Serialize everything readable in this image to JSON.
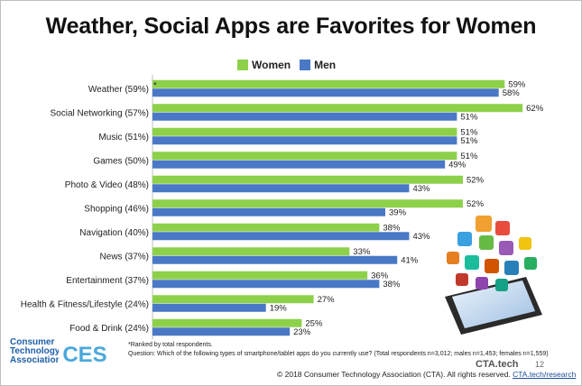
{
  "title": "Weather, Social Apps are Favorites for Women",
  "legend": {
    "women": "Women",
    "men": "Men"
  },
  "colors": {
    "women": "#8dd14b",
    "men": "#4a78c5"
  },
  "chart_data": {
    "type": "bar",
    "orientation": "horizontal",
    "categories": [
      "Weather (59%)",
      "Social Networking (57%)",
      "Music (51%)",
      "Games (50%)",
      "Photo & Video (48%)",
      "Shopping (46%)",
      "Navigation (40%)",
      "News (37%)",
      "Entertainment (37%)",
      "Health & Fitness/Lifestyle (24%)",
      "Food & Drink (24%)"
    ],
    "series": [
      {
        "name": "Women",
        "values": [
          59,
          62,
          51,
          51,
          52,
          52,
          38,
          33,
          36,
          27,
          25
        ]
      },
      {
        "name": "Men",
        "values": [
          58,
          51,
          51,
          49,
          43,
          39,
          43,
          41,
          38,
          19,
          23
        ]
      }
    ],
    "value_suffix": "%",
    "xlim": [
      0,
      65
    ],
    "legend_position": "top",
    "grid": false
  },
  "annotation_mark": "*",
  "footnotes": {
    "ranked": "*Ranked by total respondents.",
    "question": "Question: Which of the following types of smartphone/tablet apps do you currently use? (Total respondents n=3,012; males n=1,453; females n=1,559)"
  },
  "footer": {
    "copyright": "© 2018 Consumer Technology Association (CTA). All rights reserved.",
    "link": "CTA.tech/research",
    "brand": "CTA.tech",
    "page_number": "12"
  },
  "logos": {
    "cta_line1": "Consumer",
    "cta_line2": "Technology",
    "cta_line3": "Association",
    "ces": "CES"
  }
}
